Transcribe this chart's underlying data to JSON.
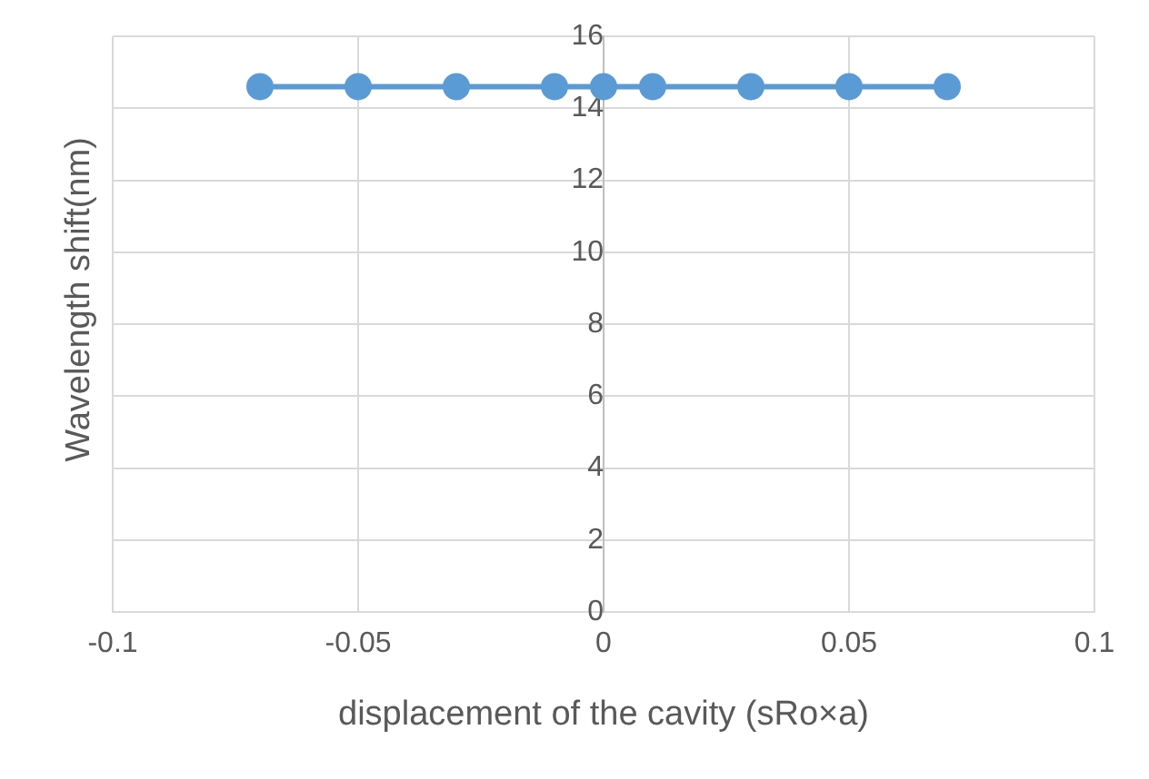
{
  "chart_data": {
    "type": "line",
    "xlabel": "displacement of the cavity (sRo×a)",
    "ylabel": "Wavelength shift(nm)",
    "x": [
      -0.07,
      -0.05,
      -0.03,
      -0.01,
      0,
      0.01,
      0.03,
      0.05,
      0.07
    ],
    "series": [
      {
        "color": "#5b9bd5",
        "values": [
          14.6,
          14.6,
          14.6,
          14.6,
          14.6,
          14.6,
          14.6,
          14.6,
          14.6
        ]
      }
    ],
    "xlim": [
      -0.1,
      0.1
    ],
    "xticks": [
      -0.1,
      -0.05,
      0,
      0.05,
      0.1
    ],
    "ylim": [
      0,
      16
    ],
    "yticks": [
      0,
      2,
      4,
      6,
      8,
      10,
      12,
      14,
      16
    ],
    "grid": true,
    "legend": false,
    "marker": "circle",
    "line_style": "solid"
  }
}
